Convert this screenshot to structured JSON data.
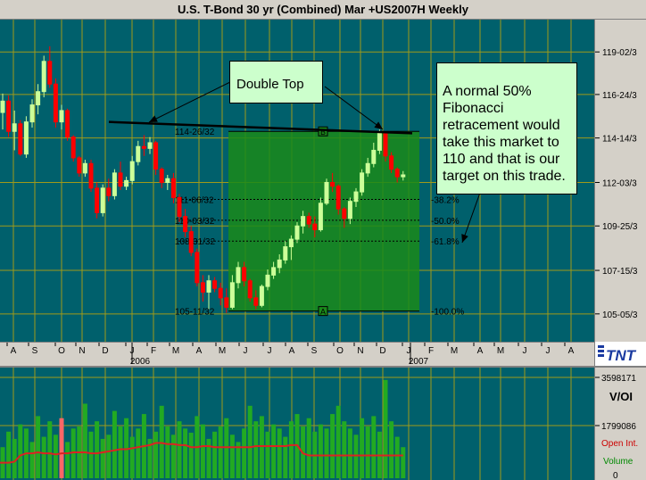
{
  "window": {
    "title": "U.S. T-Bond 30 yr (Combined) Mar +US2007H Weekly"
  },
  "annotations": {
    "double_top": "Double Top",
    "fib_note": "A normal 50% Fibonacci retracement would take this market to 110 and that is our target on this trade."
  },
  "fib_levels": [
    {
      "price_label": "114-26/32",
      "pct_label": ""
    },
    {
      "price_label": "111-06/32",
      "pct_label": "-38.2%"
    },
    {
      "price_label": "110-03/32",
      "pct_label": "-50.0%"
    },
    {
      "price_label": "108-31/32",
      "pct_label": "-61.8%"
    },
    {
      "price_label": "105-11/32",
      "pct_label": "-100.0%"
    }
  ],
  "fib_markers": {
    "top": "B",
    "bottom": "A"
  },
  "price_axis": [
    "119-02/3",
    "116-24/3",
    "114-14/3",
    "112-03/3",
    "109-25/3",
    "107-15/3",
    "105-05/3"
  ],
  "month_axis": [
    "A",
    "S",
    "O",
    "N",
    "D",
    "J",
    "F",
    "M",
    "A",
    "M",
    "J",
    "J",
    "A",
    "S",
    "O",
    "N",
    "D",
    "J",
    "F",
    "M",
    "A",
    "M",
    "J",
    "J",
    "A"
  ],
  "year_labels": [
    "2006",
    "2007"
  ],
  "volume_axis": {
    "top_value": "3598171",
    "panel_label": "V/OI",
    "mid_value": "1799086",
    "legend_oi": "Open Int.",
    "legend_volume": "Volume",
    "bottom_value": "0"
  },
  "logo": {
    "text": "TNT"
  },
  "colors": {
    "background": "#00606c",
    "grid": "#a09a1a",
    "up_candle": "#ccff99",
    "down_candle": "#ff0000",
    "fib_zone": "#1a8a1a",
    "volume_bar": "#22aa22",
    "open_interest": "#dd2222"
  },
  "chart_data": {
    "type": "candlestick",
    "title": "U.S. T-Bond 30 yr (Combined) Mar +US2007H Weekly",
    "x_axis": "weekly, Aug 2005 – Aug 2007 (only Aug 2005 – Jan 2007 plotted)",
    "y_unit": "points and 32nds",
    "ohlc": [
      [
        115.8,
        116.8,
        114.9,
        116.4
      ],
      [
        116.4,
        116.7,
        114.5,
        114.8
      ],
      [
        114.8,
        115.9,
        113.8,
        115.2
      ],
      [
        115.2,
        115.4,
        113.5,
        113.6
      ],
      [
        113.6,
        115.6,
        113.4,
        115.3
      ],
      [
        115.3,
        116.5,
        115.0,
        116.2
      ],
      [
        116.2,
        117.3,
        115.7,
        116.9
      ],
      [
        116.9,
        118.8,
        116.6,
        118.5
      ],
      [
        118.5,
        119.3,
        117.1,
        117.3
      ],
      [
        117.3,
        117.6,
        115.0,
        115.3
      ],
      [
        115.3,
        116.2,
        114.9,
        115.9
      ],
      [
        115.9,
        116.0,
        114.3,
        114.5
      ],
      [
        114.5,
        114.6,
        113.2,
        113.4
      ],
      [
        113.4,
        113.5,
        112.4,
        112.6
      ],
      [
        112.6,
        113.3,
        112.4,
        113.1
      ],
      [
        113.1,
        113.3,
        111.6,
        111.8
      ],
      [
        111.8,
        112.1,
        110.2,
        110.5
      ],
      [
        110.5,
        112.0,
        110.3,
        111.8
      ],
      [
        111.8,
        112.3,
        111.1,
        111.4
      ],
      [
        111.4,
        112.8,
        111.2,
        112.6
      ],
      [
        112.6,
        113.2,
        111.7,
        111.9
      ],
      [
        111.9,
        112.4,
        111.7,
        112.2
      ],
      [
        112.2,
        113.5,
        112.0,
        113.2
      ],
      [
        113.2,
        114.3,
        113.0,
        114.0
      ],
      [
        114.0,
        114.6,
        113.5,
        113.9
      ],
      [
        113.9,
        114.5,
        113.6,
        114.2
      ],
      [
        114.2,
        114.3,
        112.5,
        112.8
      ],
      [
        112.8,
        112.9,
        111.8,
        112.1
      ],
      [
        112.1,
        112.5,
        111.7,
        112.3
      ],
      [
        112.3,
        112.6,
        111.0,
        111.3
      ],
      [
        111.3,
        111.5,
        110.0,
        110.3
      ],
      [
        110.3,
        110.7,
        109.2,
        109.5
      ],
      [
        109.5,
        109.8,
        108.2,
        108.4
      ],
      [
        108.4,
        108.6,
        106.6,
        106.8
      ],
      [
        106.8,
        107.2,
        105.8,
        106.3
      ],
      [
        106.3,
        107.2,
        105.4,
        106.9
      ],
      [
        106.9,
        107.1,
        106.3,
        106.5
      ],
      [
        106.5,
        106.8,
        105.6,
        106.0
      ],
      [
        106.0,
        106.5,
        105.2,
        105.5
      ],
      [
        105.5,
        107.2,
        105.4,
        106.8
      ],
      [
        106.8,
        107.9,
        106.5,
        107.6
      ],
      [
        107.6,
        107.9,
        106.6,
        106.9
      ],
      [
        106.9,
        107.0,
        105.8,
        106.0
      ],
      [
        106.0,
        106.4,
        105.4,
        105.6
      ],
      [
        105.6,
        106.7,
        105.5,
        106.6
      ],
      [
        106.6,
        107.5,
        106.4,
        107.2
      ],
      [
        107.2,
        107.9,
        107.0,
        107.6
      ],
      [
        107.6,
        108.3,
        107.3,
        108.0
      ],
      [
        108.0,
        109.0,
        107.8,
        108.7
      ],
      [
        108.7,
        109.3,
        108.0,
        109.1
      ],
      [
        109.1,
        110.0,
        108.9,
        109.8
      ],
      [
        109.8,
        110.6,
        109.4,
        110.3
      ],
      [
        110.3,
        110.5,
        109.7,
        109.9
      ],
      [
        109.9,
        110.3,
        109.2,
        109.6
      ],
      [
        109.6,
        111.3,
        109.5,
        111.0
      ],
      [
        111.0,
        112.3,
        110.9,
        112.1
      ],
      [
        112.1,
        112.6,
        111.6,
        111.9
      ],
      [
        111.9,
        112.0,
        110.4,
        110.7
      ],
      [
        110.7,
        110.8,
        109.7,
        110.2
      ],
      [
        110.2,
        111.3,
        109.9,
        111.1
      ],
      [
        111.1,
        111.8,
        110.8,
        111.6
      ],
      [
        111.6,
        112.8,
        111.4,
        112.6
      ],
      [
        112.6,
        113.4,
        112.4,
        113.1
      ],
      [
        113.1,
        114.2,
        112.9,
        113.8
      ],
      [
        113.8,
        114.9,
        113.6,
        114.7
      ],
      [
        114.7,
        114.8,
        113.2,
        113.5
      ],
      [
        113.5,
        113.7,
        112.6,
        112.8
      ],
      [
        112.8,
        112.9,
        112.1,
        112.4
      ],
      [
        112.4,
        112.7,
        112.2,
        112.5
      ]
    ],
    "fibonacci": {
      "high": 114.8,
      "low": 105.3,
      "levels": [
        114.8,
        111.2,
        110.1,
        109.0,
        105.3
      ]
    },
    "trendline": {
      "start_price": 115.3,
      "end_price": 114.7
    },
    "volume": [
      30,
      45,
      38,
      52,
      48,
      35,
      60,
      40,
      55,
      42,
      58,
      35,
      48,
      50,
      72,
      45,
      55,
      38,
      42,
      65,
      50,
      58,
      40,
      48,
      62,
      38,
      45,
      70,
      50,
      42,
      55,
      48,
      44,
      60,
      52,
      38,
      45,
      50,
      58,
      42,
      35,
      48,
      70,
      55,
      60,
      45,
      52,
      48,
      40,
      55,
      62,
      50,
      58,
      45,
      52,
      48,
      62,
      70,
      55,
      48,
      42,
      58,
      50,
      60,
      45,
      95,
      55,
      40,
      30
    ],
    "open_interest": [
      15,
      15,
      16,
      22,
      24,
      24,
      25,
      24,
      24,
      23,
      24,
      24,
      25,
      25,
      25,
      24,
      24,
      25,
      26,
      27,
      28,
      28,
      29,
      30,
      31,
      32,
      34,
      34,
      33,
      33,
      32,
      32,
      30,
      30,
      31,
      31,
      30,
      30,
      30,
      30,
      30,
      30,
      30,
      31,
      31,
      31,
      31,
      31,
      31,
      32,
      32,
      24,
      22,
      22,
      22,
      22,
      22,
      22,
      22,
      22,
      22,
      22,
      22,
      22,
      22,
      22,
      22,
      22,
      22
    ],
    "volume_axis_max": 3598171
  }
}
